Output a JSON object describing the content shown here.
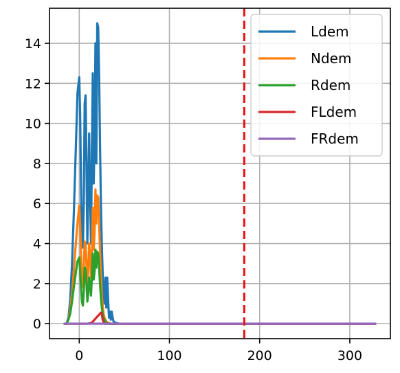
{
  "chart_data": {
    "type": "line",
    "title": "",
    "xlabel": "",
    "ylabel": "",
    "xlim": [
      -33,
      345
    ],
    "ylim": [
      -0.75,
      15.75
    ],
    "xticks": [
      0,
      100,
      200,
      300
    ],
    "yticks": [
      0,
      2,
      4,
      6,
      8,
      10,
      12,
      14
    ],
    "grid": true,
    "legend_position": "top-right",
    "vline": {
      "x": 183,
      "color": "#e8191c",
      "style": "dashed"
    },
    "series": [
      {
        "name": "Ldem",
        "color": "#1f77b4",
        "x": [
          -16,
          -14,
          -12,
          -10,
          -8,
          -6,
          -4,
          -2,
          0,
          1,
          2,
          3,
          4,
          5,
          6,
          7,
          8,
          9,
          10,
          11,
          12,
          13,
          14,
          15,
          16,
          17,
          18,
          19,
          20,
          21,
          22,
          23,
          24,
          25,
          26,
          27,
          28,
          29,
          30,
          31,
          32,
          33,
          34,
          35,
          36,
          37,
          38,
          40,
          42,
          44,
          46,
          48,
          50,
          55,
          60,
          80,
          100,
          150,
          200,
          250,
          300,
          328
        ],
        "y": [
          0,
          0,
          0.3,
          1.2,
          3,
          5.5,
          8.5,
          11.5,
          12.3,
          10.5,
          7,
          4.5,
          3.8,
          6,
          11,
          11.4,
          8,
          4,
          6.5,
          9.5,
          6.5,
          4,
          8.5,
          12.5,
          7,
          9,
          14,
          8,
          15,
          14.8,
          12.5,
          9,
          6,
          4,
          2.5,
          1.5,
          1,
          2.3,
          0.8,
          2.3,
          1.2,
          0.3,
          0.6,
          0.2,
          0.6,
          0.3,
          0.1,
          0.05,
          0.02,
          0,
          0,
          0,
          0,
          0,
          0,
          0,
          0,
          0,
          0,
          0,
          0,
          0
        ]
      },
      {
        "name": "Ndem",
        "color": "#ff7f0e",
        "x": [
          -16,
          -14,
          -12,
          -10,
          -8,
          -6,
          -4,
          -2,
          0,
          1,
          2,
          3,
          4,
          5,
          6,
          7,
          8,
          9,
          10,
          11,
          12,
          13,
          14,
          15,
          16,
          17,
          18,
          19,
          20,
          21,
          22,
          23,
          24,
          25,
          26,
          27,
          28,
          29,
          30,
          32,
          35,
          40,
          50,
          60,
          100,
          200,
          300,
          328
        ],
        "y": [
          0,
          0,
          0.2,
          0.7,
          1.5,
          2.6,
          3.9,
          5,
          5.9,
          5,
          3.5,
          2.2,
          1.8,
          2.8,
          4.1,
          4,
          3,
          1.8,
          2.7,
          4,
          3.4,
          2.3,
          3.5,
          5.8,
          3.7,
          4.5,
          6.7,
          5,
          6.4,
          6.3,
          5,
          3.7,
          2.5,
          1.5,
          0.9,
          0.5,
          0.3,
          0.2,
          0.1,
          0.05,
          0,
          0,
          0,
          0,
          0,
          0,
          0,
          0
        ]
      },
      {
        "name": "Rdem",
        "color": "#2ca02c",
        "x": [
          -16,
          -14,
          -12,
          -10,
          -8,
          -6,
          -4,
          -2,
          0,
          1,
          2,
          3,
          4,
          5,
          6,
          7,
          8,
          9,
          10,
          11,
          12,
          13,
          14,
          15,
          16,
          17,
          18,
          19,
          20,
          21,
          22,
          23,
          24,
          25,
          26,
          27,
          28,
          29,
          30,
          32,
          35,
          40,
          50,
          60,
          100,
          200,
          300,
          328
        ],
        "y": [
          0,
          0,
          0.2,
          0.5,
          1.1,
          1.8,
          2.5,
          3.1,
          3.3,
          2.6,
          1.8,
          1.1,
          0.9,
          1.6,
          2.8,
          2.7,
          2,
          1.1,
          1.5,
          2.3,
          2,
          1.4,
          2.3,
          3.5,
          2.2,
          2.6,
          3.7,
          2.8,
          3.6,
          3.5,
          2.8,
          2,
          1.3,
          0.8,
          0.5,
          0.3,
          0.2,
          0.1,
          0.05,
          0,
          0,
          0,
          0,
          0,
          0,
          0,
          0,
          0
        ]
      },
      {
        "name": "FLdem",
        "color": "#d62728",
        "x": [
          -16,
          0,
          10,
          14,
          17,
          20,
          22,
          24,
          25,
          26,
          28,
          40,
          60,
          100,
          200,
          300,
          328
        ],
        "y": [
          0,
          0,
          0,
          0.05,
          0.2,
          0.35,
          0.45,
          0.55,
          0.5,
          0.2,
          0,
          0,
          0,
          0,
          0,
          0,
          0
        ]
      },
      {
        "name": "FRdem",
        "color": "#9467bd",
        "x": [
          -16,
          0,
          100,
          200,
          300,
          328
        ],
        "y": [
          0,
          0,
          0,
          0,
          0,
          0
        ]
      }
    ]
  }
}
